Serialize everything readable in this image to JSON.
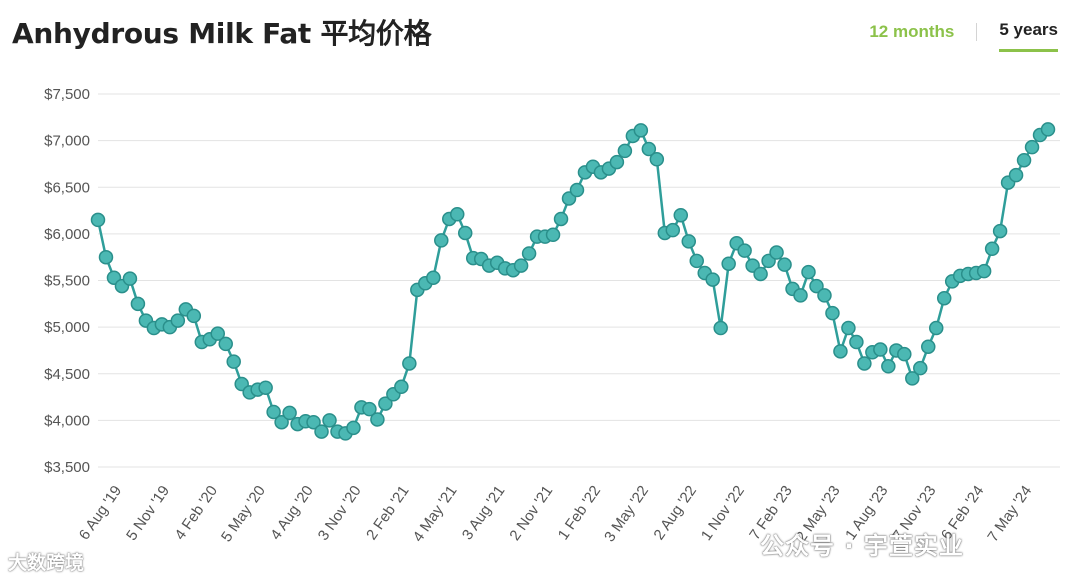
{
  "header": {
    "title": "Anhydrous Milk Fat 平均价格",
    "tabs": [
      {
        "label": "12 months",
        "active": false
      },
      {
        "label": "5 years",
        "active": true
      }
    ]
  },
  "colors": {
    "line": "#2f9e9a",
    "marker_fill": "#4bb8b3",
    "marker_stroke": "#2a8f8b",
    "grid": "#e3e3e3",
    "accent": "#8cc24a"
  },
  "watermarks": {
    "left": "大数跨境",
    "right": "公众号 · 宇萱实业"
  },
  "chart_data": {
    "type": "line",
    "title": "Anhydrous Milk Fat 平均价格",
    "xlabel": "",
    "ylabel": "",
    "ylim": [
      3500,
      7500
    ],
    "yticks": [
      3500,
      4000,
      4500,
      5000,
      5500,
      6000,
      6500,
      7000,
      7500
    ],
    "ytick_labels": [
      "$3,500",
      "$4,000",
      "$4,500",
      "$5,000",
      "$5,500",
      "$6,000",
      "$6,500",
      "$7,000",
      "$7,500"
    ],
    "grid": true,
    "xtick_labels": [
      "6 Aug '19",
      "5 Nov '19",
      "4 Feb '20",
      "5 May '20",
      "4 Aug '20",
      "3 Nov '20",
      "2 Feb '21",
      "4 May '21",
      "3 Aug '21",
      "2 Nov '21",
      "1 Feb '22",
      "3 May '22",
      "2 Aug '22",
      "1 Nov '22",
      "7 Feb '23",
      "2 May '23",
      "1 Aug '23",
      "7 Nov '23",
      "6 Feb '24",
      "7 May '24"
    ],
    "xtick_index": [
      3,
      9,
      15,
      21,
      27,
      33,
      39,
      45,
      51,
      57,
      63,
      69,
      75,
      81,
      87,
      93,
      99,
      105,
      111,
      117
    ],
    "series": [
      {
        "values": [
          6150,
          5750,
          5530,
          5440,
          5520,
          5250,
          5070,
          4990,
          5030,
          5000,
          5070,
          5190,
          5120,
          4840,
          4870,
          4930,
          4820,
          4630,
          4390,
          4300,
          4330,
          4350,
          4090,
          3980,
          4080,
          3960,
          3990,
          3980,
          3880,
          4000,
          3880,
          3860,
          3920,
          4140,
          4120,
          4010,
          4180,
          4280,
          4360,
          4610,
          5400,
          5470,
          5530,
          5930,
          6160,
          6210,
          6010,
          5740,
          5730,
          5660,
          5690,
          5630,
          5610,
          5660,
          5790,
          5970,
          5970,
          5990,
          6160,
          6380,
          6470,
          6660,
          6720,
          6660,
          6700,
          6770,
          6890,
          7050,
          7110,
          6910,
          6800,
          6010,
          6040,
          6200,
          5920,
          5710,
          5580,
          5510,
          4990,
          5680,
          5900,
          5820,
          5660,
          5570,
          5710,
          5800,
          5670,
          5410,
          5340,
          5590,
          5440,
          5340,
          5150,
          4740,
          4990,
          4840,
          4610,
          4730,
          4760,
          4580,
          4750,
          4710,
          4450,
          4560,
          4790,
          4990,
          5310,
          5490,
          5550,
          5570,
          5580,
          5600,
          5840,
          6030,
          6550,
          6630,
          6790,
          6930,
          7060,
          7120
        ]
      }
    ]
  }
}
